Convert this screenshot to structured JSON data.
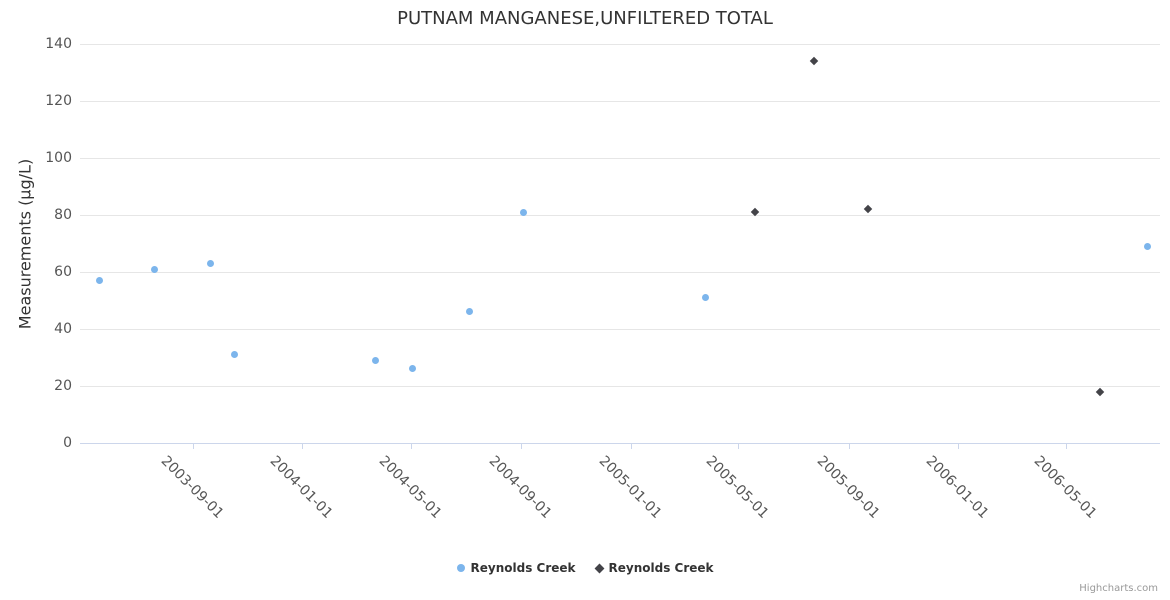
{
  "chart_data": {
    "type": "scatter",
    "title": "PUTNAM MANGANESE,UNFILTERED TOTAL",
    "xlabel": "",
    "ylabel": "Measurements (µg/L)",
    "x_type": "datetime",
    "y_ticks": [
      0,
      20,
      40,
      60,
      80,
      100,
      120,
      140
    ],
    "ylim": [
      0,
      140
    ],
    "x_tick_labels": [
      "2003-09-01",
      "2004-01-01",
      "2004-05-01",
      "2004-09-01",
      "2005-01-01",
      "2005-05-01",
      "2005-09-01",
      "2006-01-01",
      "2006-05-01"
    ],
    "grid": "horizontal",
    "legend_position": "bottom-center",
    "series": [
      {
        "name": "Reynolds Creek",
        "marker": "circle",
        "color": "#7cb5ec",
        "points": [
          {
            "date": "2003-05-20",
            "value": 57
          },
          {
            "date": "2003-07-20",
            "value": 61
          },
          {
            "date": "2003-09-20",
            "value": 63
          },
          {
            "date": "2003-10-17",
            "value": 31
          },
          {
            "date": "2004-03-22",
            "value": 29
          },
          {
            "date": "2004-05-03",
            "value": 26
          },
          {
            "date": "2004-07-05",
            "value": 46
          },
          {
            "date": "2004-09-03",
            "value": 81
          },
          {
            "date": "2005-03-25",
            "value": 51
          },
          {
            "date": "2006-07-31",
            "value": 69
          }
        ]
      },
      {
        "name": "Reynolds Creek",
        "marker": "diamond",
        "color": "#434348",
        "points": [
          {
            "date": "2005-05-20",
            "value": 81
          },
          {
            "date": "2005-07-24",
            "value": 134
          },
          {
            "date": "2005-09-22",
            "value": 82
          },
          {
            "date": "2006-06-08",
            "value": 18
          }
        ]
      }
    ]
  },
  "credit": "Highcharts.com",
  "colors": {
    "series_blue": "#7cb5ec",
    "series_dark": "#434348",
    "gridline": "#e6e6e6",
    "axis_line": "#ccd6eb",
    "title_text": "#333333",
    "tick_text": "#555555",
    "legend_text": "#333333",
    "credit_text": "#999999"
  }
}
